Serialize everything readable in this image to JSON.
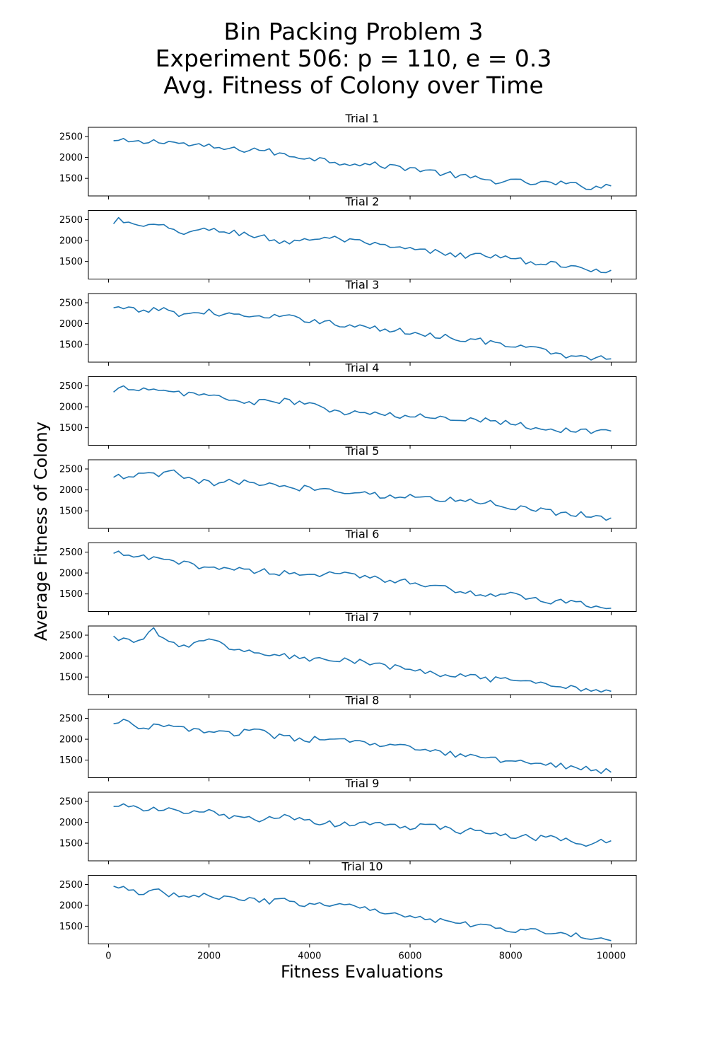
{
  "figure": {
    "title_lines": [
      "Bin Packing Problem 3",
      "Experiment 506: p = 110, e = 0.3",
      "Avg. Fitness of Colony over Time"
    ],
    "xlabel": "Fitness Evaluations",
    "ylabel": "Average Fitness of Colony",
    "line_color": "#1f77b4"
  },
  "chart_data": {
    "type": "line",
    "x_start": 100,
    "x_step": 100,
    "x_count": 100,
    "xlim": [
      -400,
      10500
    ],
    "xticks": [
      0,
      2000,
      4000,
      6000,
      8000,
      10000
    ],
    "ylim": [
      1080,
      2720
    ],
    "yticks": [
      1500,
      2000,
      2500
    ],
    "grid": false,
    "shared_x": true,
    "series": [
      {
        "title": "Trial 1",
        "anchors": [
          [
            100,
            2400
          ],
          [
            300,
            2380
          ],
          [
            600,
            2350
          ],
          [
            1100,
            2400
          ],
          [
            1600,
            2300
          ],
          [
            2000,
            2250
          ],
          [
            2500,
            2180
          ],
          [
            3000,
            2200
          ],
          [
            3500,
            2050
          ],
          [
            4000,
            2000
          ],
          [
            4500,
            1900
          ],
          [
            5000,
            1850
          ],
          [
            5500,
            1800
          ],
          [
            6000,
            1750
          ],
          [
            6500,
            1650
          ],
          [
            7000,
            1550
          ],
          [
            7500,
            1450
          ],
          [
            8000,
            1430
          ],
          [
            8500,
            1380
          ],
          [
            9000,
            1380
          ],
          [
            9500,
            1300
          ],
          [
            10000,
            1320
          ]
        ]
      },
      {
        "title": "Trial 2",
        "anchors": [
          [
            100,
            2400
          ],
          [
            200,
            2520
          ],
          [
            500,
            2350
          ],
          [
            1000,
            2340
          ],
          [
            1500,
            2200
          ],
          [
            2000,
            2250
          ],
          [
            2500,
            2200
          ],
          [
            3000,
            2100
          ],
          [
            3500,
            1950
          ],
          [
            4000,
            2050
          ],
          [
            4500,
            2050
          ],
          [
            5000,
            1950
          ],
          [
            5500,
            1850
          ],
          [
            6000,
            1780
          ],
          [
            6500,
            1720
          ],
          [
            7000,
            1650
          ],
          [
            7500,
            1650
          ],
          [
            8000,
            1550
          ],
          [
            8500,
            1480
          ],
          [
            9000,
            1400
          ],
          [
            9500,
            1330
          ],
          [
            10000,
            1290
          ]
        ]
      },
      {
        "title": "Trial 3",
        "anchors": [
          [
            100,
            2380
          ],
          [
            300,
            2350
          ],
          [
            600,
            2300
          ],
          [
            1000,
            2350
          ],
          [
            1500,
            2220
          ],
          [
            2000,
            2280
          ],
          [
            2500,
            2200
          ],
          [
            3000,
            2150
          ],
          [
            3500,
            2150
          ],
          [
            4000,
            2100
          ],
          [
            4500,
            2000
          ],
          [
            5000,
            1930
          ],
          [
            5500,
            1850
          ],
          [
            6000,
            1800
          ],
          [
            6500,
            1720
          ],
          [
            7000,
            1650
          ],
          [
            7500,
            1580
          ],
          [
            8000,
            1450
          ],
          [
            8500,
            1400
          ],
          [
            9000,
            1250
          ],
          [
            9500,
            1200
          ],
          [
            10000,
            1160
          ]
        ]
      },
      {
        "title": "Trial 4",
        "anchors": [
          [
            100,
            2350
          ],
          [
            300,
            2450
          ],
          [
            500,
            2470
          ],
          [
            1000,
            2350
          ],
          [
            1500,
            2330
          ],
          [
            2000,
            2280
          ],
          [
            2500,
            2150
          ],
          [
            3000,
            2100
          ],
          [
            3500,
            2150
          ],
          [
            4000,
            2050
          ],
          [
            4500,
            1880
          ],
          [
            5000,
            1850
          ],
          [
            5500,
            1800
          ],
          [
            6000,
            1760
          ],
          [
            6500,
            1760
          ],
          [
            7000,
            1720
          ],
          [
            7500,
            1700
          ],
          [
            8000,
            1620
          ],
          [
            8500,
            1500
          ],
          [
            9000,
            1440
          ],
          [
            9500,
            1420
          ],
          [
            10000,
            1420
          ]
        ]
      },
      {
        "title": "Trial 5",
        "anchors": [
          [
            100,
            2300
          ],
          [
            500,
            2350
          ],
          [
            1000,
            2350
          ],
          [
            1300,
            2450
          ],
          [
            1500,
            2280
          ],
          [
            2000,
            2150
          ],
          [
            2500,
            2200
          ],
          [
            3000,
            2150
          ],
          [
            3500,
            2050
          ],
          [
            4000,
            2050
          ],
          [
            4500,
            2000
          ],
          [
            5000,
            1950
          ],
          [
            5500,
            1850
          ],
          [
            6000,
            1850
          ],
          [
            6500,
            1770
          ],
          [
            7000,
            1780
          ],
          [
            7500,
            1700
          ],
          [
            8000,
            1600
          ],
          [
            8500,
            1530
          ],
          [
            9000,
            1450
          ],
          [
            9500,
            1420
          ],
          [
            10000,
            1330
          ]
        ]
      },
      {
        "title": "Trial 6",
        "anchors": [
          [
            100,
            2470
          ],
          [
            400,
            2420
          ],
          [
            800,
            2350
          ],
          [
            1200,
            2280
          ],
          [
            1600,
            2200
          ],
          [
            2000,
            2150
          ],
          [
            2500,
            2100
          ],
          [
            3000,
            2050
          ],
          [
            3500,
            2000
          ],
          [
            4000,
            1980
          ],
          [
            4500,
            1960
          ],
          [
            5000,
            1930
          ],
          [
            5500,
            1850
          ],
          [
            6000,
            1800
          ],
          [
            6500,
            1700
          ],
          [
            7000,
            1550
          ],
          [
            7500,
            1500
          ],
          [
            8000,
            1480
          ],
          [
            8500,
            1350
          ],
          [
            9000,
            1300
          ],
          [
            9500,
            1240
          ],
          [
            10000,
            1160
          ]
        ]
      },
      {
        "title": "Trial 7",
        "anchors": [
          [
            100,
            2480
          ],
          [
            500,
            2330
          ],
          [
            900,
            2620
          ],
          [
            1200,
            2300
          ],
          [
            1600,
            2280
          ],
          [
            2000,
            2350
          ],
          [
            2500,
            2200
          ],
          [
            3000,
            2050
          ],
          [
            3500,
            2000
          ],
          [
            4000,
            1920
          ],
          [
            4500,
            1920
          ],
          [
            5000,
            1850
          ],
          [
            5500,
            1750
          ],
          [
            6000,
            1700
          ],
          [
            6500,
            1550
          ],
          [
            7000,
            1550
          ],
          [
            7500,
            1450
          ],
          [
            8000,
            1400
          ],
          [
            8500,
            1330
          ],
          [
            9000,
            1280
          ],
          [
            9500,
            1220
          ],
          [
            10000,
            1160
          ]
        ]
      },
      {
        "title": "Trial 8",
        "anchors": [
          [
            100,
            2370
          ],
          [
            200,
            2450
          ],
          [
            500,
            2320
          ],
          [
            1000,
            2300
          ],
          [
            1500,
            2250
          ],
          [
            2000,
            2200
          ],
          [
            2500,
            2150
          ],
          [
            3000,
            2180
          ],
          [
            3500,
            2020
          ],
          [
            4000,
            2000
          ],
          [
            4500,
            1980
          ],
          [
            5000,
            1920
          ],
          [
            5500,
            1830
          ],
          [
            6000,
            1800
          ],
          [
            6500,
            1700
          ],
          [
            7000,
            1600
          ],
          [
            7500,
            1550
          ],
          [
            8000,
            1480
          ],
          [
            8500,
            1450
          ],
          [
            9000,
            1380
          ],
          [
            9500,
            1310
          ],
          [
            10000,
            1210
          ]
        ]
      },
      {
        "title": "Trial 9",
        "anchors": [
          [
            100,
            2380
          ],
          [
            300,
            2480
          ],
          [
            600,
            2300
          ],
          [
            1000,
            2300
          ],
          [
            1500,
            2250
          ],
          [
            2000,
            2250
          ],
          [
            2500,
            2100
          ],
          [
            3000,
            2070
          ],
          [
            3500,
            2120
          ],
          [
            4000,
            2020
          ],
          [
            4500,
            1950
          ],
          [
            5000,
            1980
          ],
          [
            5500,
            1950
          ],
          [
            6000,
            1900
          ],
          [
            6500,
            1880
          ],
          [
            7000,
            1800
          ],
          [
            7500,
            1780
          ],
          [
            8000,
            1650
          ],
          [
            8500,
            1630
          ],
          [
            9000,
            1600
          ],
          [
            9500,
            1500
          ],
          [
            10000,
            1560
          ]
        ]
      },
      {
        "title": "Trial 10",
        "anchors": [
          [
            100,
            2460
          ],
          [
            300,
            2450
          ],
          [
            600,
            2250
          ],
          [
            1000,
            2340
          ],
          [
            1500,
            2200
          ],
          [
            2000,
            2250
          ],
          [
            2500,
            2150
          ],
          [
            3000,
            2100
          ],
          [
            3500,
            2100
          ],
          [
            4000,
            2030
          ],
          [
            4500,
            2000
          ],
          [
            5000,
            1950
          ],
          [
            5500,
            1850
          ],
          [
            6000,
            1780
          ],
          [
            6500,
            1650
          ],
          [
            7000,
            1620
          ],
          [
            7500,
            1480
          ],
          [
            8000,
            1420
          ],
          [
            8500,
            1400
          ],
          [
            9000,
            1330
          ],
          [
            9500,
            1240
          ],
          [
            10000,
            1160
          ]
        ]
      }
    ]
  }
}
